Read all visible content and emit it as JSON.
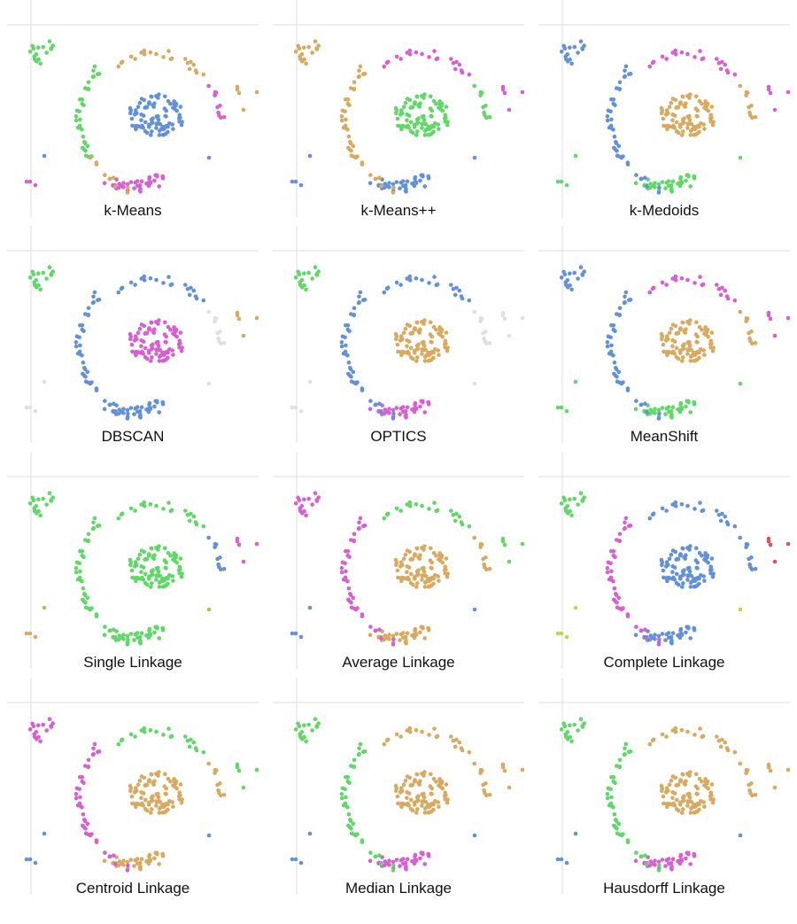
{
  "colors": {
    "blue": "#6291db",
    "green": "#5ed966",
    "magenta": "#d95ed3",
    "orange": "#d9a95e",
    "red": "#d95454",
    "olive": "#c2d44a",
    "noise": "#e0e0e0",
    "axis": "#dedede"
  },
  "chart_data": [
    {
      "type": "scatter",
      "title": "k-Means",
      "coloring": {
        "A": "green",
        "B": "orange",
        "C": "blue",
        "D": "magenta",
        "E": "orange",
        "F": "blue",
        "G": "magenta",
        "H": "green",
        "I": "orange",
        "J": "magenta"
      }
    },
    {
      "type": "scatter",
      "title": "k-Means++",
      "coloring": {
        "A": "orange",
        "B": "magenta",
        "C": "green",
        "D": "blue",
        "E": "magenta",
        "F": "blue",
        "G": "blue",
        "H": "orange",
        "I": "orange",
        "J": "green"
      }
    },
    {
      "type": "scatter",
      "title": "k-Medoids",
      "coloring": {
        "A": "blue",
        "B": "magenta",
        "C": "orange",
        "D": "green",
        "E": "magenta",
        "F": "green",
        "G": "green",
        "H": "blue",
        "I": "blue",
        "J": "orange"
      }
    },
    {
      "type": "scatter",
      "title": "DBSCAN",
      "coloring": {
        "A": "green",
        "B": "blue",
        "C": "magenta",
        "D": "blue",
        "E": "orange",
        "F": "noise",
        "G": "noise",
        "H": "blue",
        "I": "blue",
        "J": "noise"
      }
    },
    {
      "type": "scatter",
      "title": "OPTICS",
      "coloring": {
        "A": "green",
        "B": "blue",
        "C": "orange",
        "D": "magenta",
        "E": "noise",
        "F": "noise",
        "G": "noise",
        "H": "blue",
        "I": "blue",
        "J": "noise"
      }
    },
    {
      "type": "scatter",
      "title": "MeanShift",
      "coloring": {
        "A": "blue",
        "B": "magenta",
        "C": "orange",
        "D": "green",
        "E": "magenta",
        "F": "green",
        "G": "green",
        "H": "blue",
        "I": "blue",
        "J": "orange"
      }
    },
    {
      "type": "scatter",
      "title": "Single Linkage",
      "coloring": {
        "A": "green",
        "B": "green",
        "C": "green",
        "D": "green",
        "E": "magenta",
        "F": "orange",
        "G": "orange",
        "H": "green",
        "I": "green",
        "J": "blue"
      }
    },
    {
      "type": "scatter",
      "title": "Average Linkage",
      "coloring": {
        "A": "magenta",
        "B": "green",
        "C": "orange",
        "D": "orange",
        "E": "green",
        "F": "blue",
        "G": "blue",
        "H": "magenta",
        "I": "magenta",
        "J": "orange"
      }
    },
    {
      "type": "scatter",
      "title": "Complete Linkage",
      "coloring": {
        "A": "green",
        "B": "blue",
        "C": "blue",
        "D": "blue",
        "E": "red",
        "F": "olive",
        "G": "olive",
        "H": "magenta",
        "I": "magenta",
        "J": "blue"
      }
    },
    {
      "type": "scatter",
      "title": "Centroid Linkage",
      "coloring": {
        "A": "magenta",
        "B": "green",
        "C": "orange",
        "D": "orange",
        "E": "green",
        "F": "blue",
        "G": "blue",
        "H": "magenta",
        "I": "magenta",
        "J": "orange"
      }
    },
    {
      "type": "scatter",
      "title": "Median Linkage",
      "coloring": {
        "A": "green",
        "B": "orange",
        "C": "orange",
        "D": "magenta",
        "E": "orange",
        "F": "blue",
        "G": "blue",
        "H": "green",
        "I": "green",
        "J": "orange"
      }
    },
    {
      "type": "scatter",
      "title": "Hausdorff Linkage",
      "coloring": {
        "A": "green",
        "B": "orange",
        "C": "orange",
        "D": "magenta",
        "E": "orange",
        "F": "blue",
        "G": "blue",
        "H": "green",
        "I": "green",
        "J": "orange"
      }
    }
  ]
}
